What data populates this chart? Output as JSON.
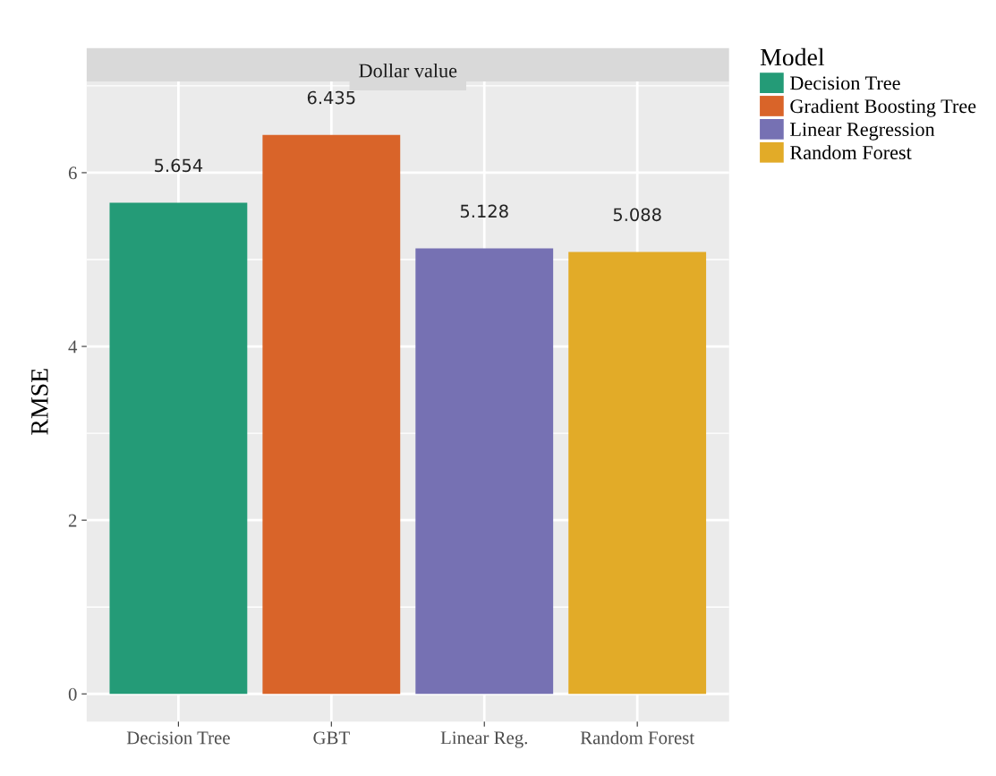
{
  "chart_data": {
    "type": "bar",
    "title": "Dollar value",
    "ylabel": "RMSE",
    "legend_title": "Model",
    "categories": [
      "Decision Tree",
      "GBT",
      "Linear Reg.",
      "Random Forest"
    ],
    "series": [
      {
        "name": "Decision Tree",
        "color": "#249b77",
        "values": [
          5.654,
          null,
          null,
          null
        ]
      },
      {
        "name": "Gradient Boosting Tree",
        "color": "#d96429",
        "values": [
          null,
          6.435,
          null,
          null
        ]
      },
      {
        "name": "Linear Regression",
        "color": "#7671b3",
        "values": [
          null,
          null,
          5.128,
          null
        ]
      },
      {
        "name": "Random Forest",
        "color": "#e2ab28",
        "values": [
          null,
          null,
          null,
          5.088
        ]
      }
    ],
    "ylim": [
      -0.32,
      7.05
    ],
    "yticks": [
      0,
      {
        "value": 1,
        "label": null
      },
      2,
      {
        "value": 3,
        "label": null
      },
      4,
      {
        "value": 5,
        "label": null
      },
      6,
      {
        "value": 7,
        "label": null
      }
    ],
    "data_labels": true,
    "grid": true,
    "legend": "top right"
  }
}
